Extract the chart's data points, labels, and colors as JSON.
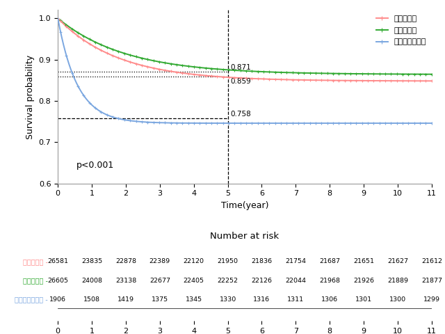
{
  "xlabel": "Time(year)",
  "ylabel": "Survival probability",
  "xlim": [
    0,
    11
  ],
  "ylim": [
    0.6,
    1.02
  ],
  "yticks": [
    0.6,
    0.7,
    0.8,
    0.9,
    1.0
  ],
  "xticks": [
    0,
    1,
    2,
    3,
    4,
    5,
    6,
    7,
    8,
    9,
    10,
    11
  ],
  "vline_x": 5,
  "hline_y1": 0.871,
  "hline_y2": 0.859,
  "hline_y3": 0.758,
  "annotation1": "0.871",
  "annotation2": "0.859",
  "annotation3": "0.758",
  "pvalue_text": "p<0.001",
  "legend_labels": [
    "지역가입자",
    "직장가입자",
    "의료급여가입자"
  ],
  "color_regional": "#FF8C8C",
  "color_workplace": "#33AA33",
  "color_medical": "#7BA7E0",
  "risk_title": "Number at risk",
  "risk_labels": [
    "지역가입자",
    "직장가입자",
    "의료급여가입자"
  ],
  "risk_label_colors": [
    "#FF8C8C",
    "#33AA33",
    "#7BA7E0"
  ],
  "risk_times": [
    0,
    1,
    2,
    3,
    4,
    5,
    6,
    7,
    8,
    9,
    10,
    11
  ],
  "risk_regional": [
    26581,
    23835,
    22878,
    22389,
    22120,
    21950,
    21836,
    21754,
    21687,
    21651,
    21627,
    21612
  ],
  "risk_workplace": [
    26605,
    24008,
    23138,
    22677,
    22405,
    22252,
    22126,
    22044,
    21968,
    21926,
    21889,
    21877
  ],
  "risk_medical": [
    1906,
    1508,
    1419,
    1375,
    1345,
    1330,
    1316,
    1311,
    1306,
    1301,
    1300,
    1299
  ],
  "curve_wp_plateau": 0.864,
  "curve_wp_amp": 0.136,
  "curve_wp_rate": 0.5,
  "curve_rg_plateau": 0.848,
  "curve_rg_amp": 0.152,
  "curve_rg_rate": 0.56,
  "curve_md_plateau": 0.746,
  "curve_md_amp": 0.254,
  "curve_md_rate": 1.75,
  "background_color": "#FFFFFF"
}
